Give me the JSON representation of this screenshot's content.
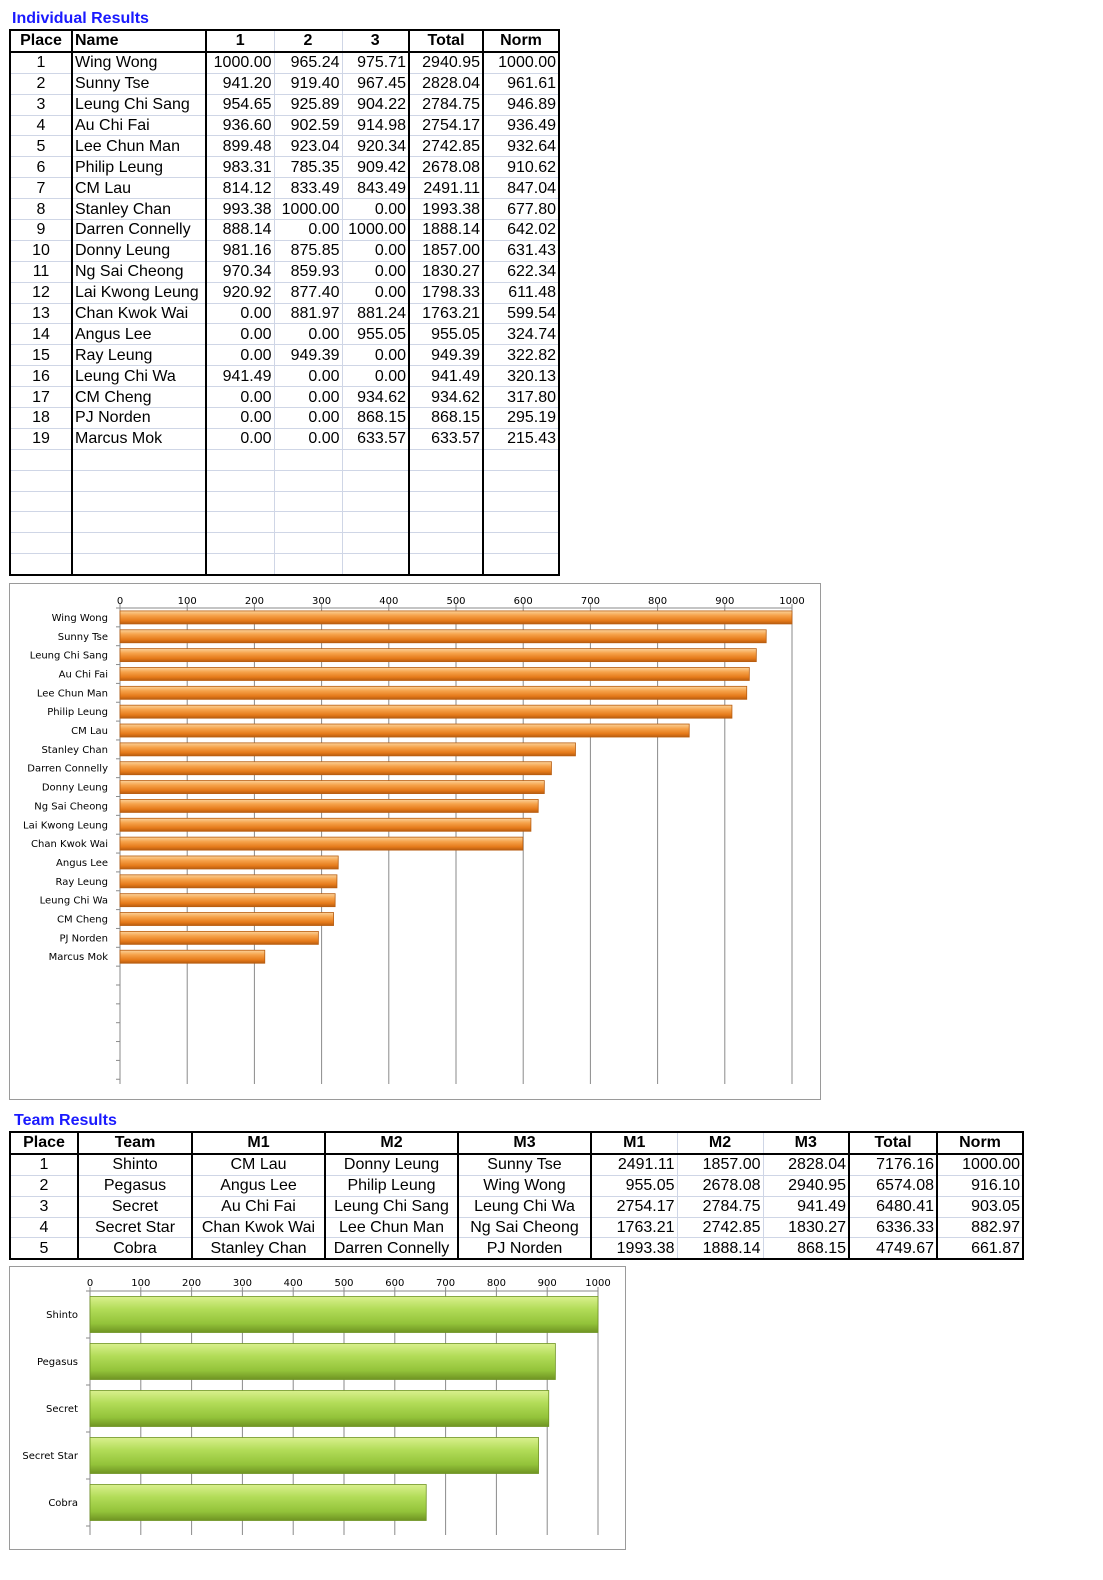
{
  "individual": {
    "title": "Individual Results",
    "headers": [
      "Place",
      "Name",
      "1",
      "2",
      "3",
      "Total",
      "Norm"
    ],
    "rows": [
      [
        "1",
        "Wing Wong",
        "1000.00",
        "965.24",
        "975.71",
        "2940.95",
        "1000.00"
      ],
      [
        "2",
        "Sunny Tse",
        "941.20",
        "919.40",
        "967.45",
        "2828.04",
        "961.61"
      ],
      [
        "3",
        "Leung Chi Sang",
        "954.65",
        "925.89",
        "904.22",
        "2784.75",
        "946.89"
      ],
      [
        "4",
        "Au Chi Fai",
        "936.60",
        "902.59",
        "914.98",
        "2754.17",
        "936.49"
      ],
      [
        "5",
        "Lee Chun Man",
        "899.48",
        "923.04",
        "920.34",
        "2742.85",
        "932.64"
      ],
      [
        "6",
        "Philip Leung",
        "983.31",
        "785.35",
        "909.42",
        "2678.08",
        "910.62"
      ],
      [
        "7",
        "CM Lau",
        "814.12",
        "833.49",
        "843.49",
        "2491.11",
        "847.04"
      ],
      [
        "8",
        "Stanley Chan",
        "993.38",
        "1000.00",
        "0.00",
        "1993.38",
        "677.80"
      ],
      [
        "9",
        "Darren Connelly",
        "888.14",
        "0.00",
        "1000.00",
        "1888.14",
        "642.02"
      ],
      [
        "10",
        "Donny Leung",
        "981.16",
        "875.85",
        "0.00",
        "1857.00",
        "631.43"
      ],
      [
        "11",
        "Ng Sai Cheong",
        "970.34",
        "859.93",
        "0.00",
        "1830.27",
        "622.34"
      ],
      [
        "12",
        "Lai Kwong Leung",
        "920.92",
        "877.40",
        "0.00",
        "1798.33",
        "611.48"
      ],
      [
        "13",
        "Chan Kwok Wai",
        "0.00",
        "881.97",
        "881.24",
        "1763.21",
        "599.54"
      ],
      [
        "14",
        "Angus Lee",
        "0.00",
        "0.00",
        "955.05",
        "955.05",
        "324.74"
      ],
      [
        "15",
        "Ray Leung",
        "0.00",
        "949.39",
        "0.00",
        "949.39",
        "322.82"
      ],
      [
        "16",
        "Leung Chi Wa",
        "941.49",
        "0.00",
        "0.00",
        "941.49",
        "320.13"
      ],
      [
        "17",
        "CM Cheng",
        "0.00",
        "0.00",
        "934.62",
        "934.62",
        "317.80"
      ],
      [
        "18",
        "PJ Norden",
        "0.00",
        "0.00",
        "868.15",
        "868.15",
        "295.19"
      ],
      [
        "19",
        "Marcus Mok",
        "0.00",
        "0.00",
        "633.57",
        "633.57",
        "215.43"
      ]
    ]
  },
  "team": {
    "title": "Team Results",
    "headers": [
      "Place",
      "Team",
      "M1",
      "M2",
      "M3",
      "M1",
      "M2",
      "M3",
      "Total",
      "Norm"
    ],
    "rows": [
      [
        "1",
        "Shinto",
        "CM Lau",
        "Donny Leung",
        "Sunny Tse",
        "2491.11",
        "1857.00",
        "2828.04",
        "7176.16",
        "1000.00"
      ],
      [
        "2",
        "Pegasus",
        "Angus Lee",
        "Philip Leung",
        "Wing Wong",
        "955.05",
        "2678.08",
        "2940.95",
        "6574.08",
        "916.10"
      ],
      [
        "3",
        "Secret",
        "Au Chi Fai",
        "Leung Chi Sang",
        "Leung Chi Wa",
        "2754.17",
        "2784.75",
        "941.49",
        "6480.41",
        "903.05"
      ],
      [
        "4",
        "Secret Star",
        "Chan Kwok Wai",
        "Lee Chun Man",
        "Ng Sai Cheong",
        "1763.21",
        "2742.85",
        "1830.27",
        "6336.33",
        "882.97"
      ],
      [
        "5",
        "Cobra",
        "Stanley Chan",
        "Darren Connelly",
        "PJ Norden",
        "1993.38",
        "1888.14",
        "868.15",
        "4749.67",
        "661.87"
      ]
    ]
  },
  "chart_data": [
    {
      "type": "bar",
      "orientation": "horizontal",
      "categories": [
        "Wing Wong",
        "Sunny Tse",
        "Leung Chi Sang",
        "Au Chi Fai",
        "Lee Chun Man",
        "Philip Leung",
        "CM Lau",
        "Stanley Chan",
        "Darren Connelly",
        "Donny Leung",
        "Ng Sai Cheong",
        "Lai Kwong Leung",
        "Chan Kwok Wai",
        "Angus Lee",
        "Ray Leung",
        "Leung Chi Wa",
        "CM Cheng",
        "PJ Norden",
        "Marcus Mok"
      ],
      "values": [
        1000.0,
        961.61,
        946.89,
        936.49,
        932.64,
        910.62,
        847.04,
        677.8,
        642.02,
        631.43,
        622.34,
        611.48,
        599.54,
        324.74,
        322.82,
        320.13,
        317.8,
        295.19,
        215.43
      ],
      "xlim": [
        0,
        1000
      ],
      "ticks": [
        "0",
        "100",
        "200",
        "300",
        "400",
        "500",
        "600",
        "700",
        "800",
        "900",
        "1000"
      ],
      "axis_position": "top",
      "grid": true,
      "color": "#f0922e"
    },
    {
      "type": "bar",
      "orientation": "horizontal",
      "categories": [
        "Shinto",
        "Pegasus",
        "Secret",
        "Secret Star",
        "Cobra"
      ],
      "values": [
        1000.0,
        916.1,
        903.05,
        882.97,
        661.87
      ],
      "xlim": [
        0,
        1000
      ],
      "ticks": [
        "0",
        "100",
        "200",
        "300",
        "400",
        "500",
        "600",
        "700",
        "800",
        "900",
        "1000"
      ],
      "axis_position": "top",
      "grid": true,
      "color": "#9acd3c"
    }
  ]
}
